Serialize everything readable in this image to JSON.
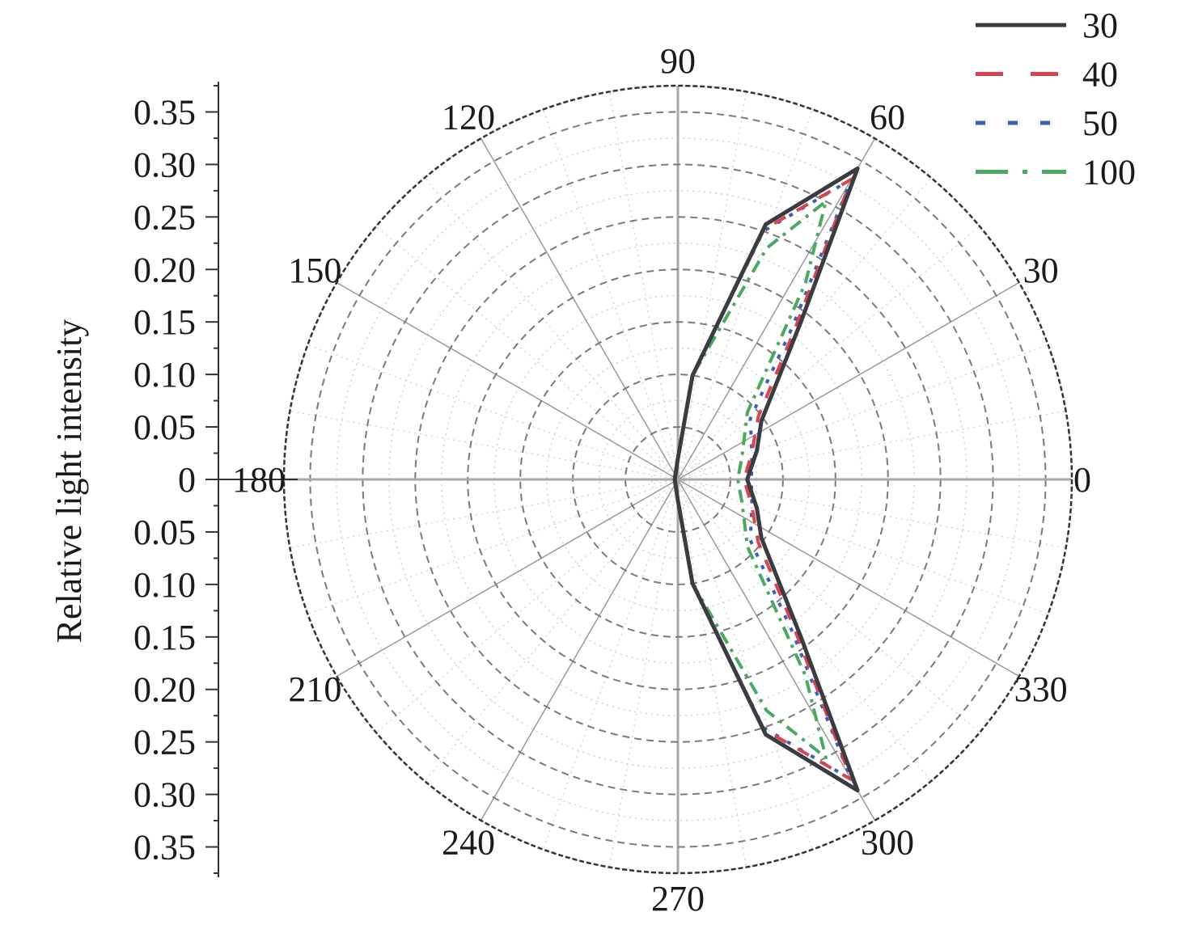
{
  "chart_data": {
    "type": "polar-line",
    "ylabel": "Relative light intensity",
    "rlim": [
      0,
      0.375
    ],
    "r_ticks": [
      0,
      0.05,
      0.1,
      0.15,
      0.2,
      0.25,
      0.3,
      0.35
    ],
    "r_tick_labels": [
      "0",
      "0.05",
      "0.10",
      "0.15",
      "0.20",
      "0.25",
      "0.30",
      "0.35"
    ],
    "angle_ticks": [
      0,
      30,
      60,
      90,
      120,
      150,
      180,
      210,
      240,
      270,
      300,
      330
    ],
    "angle_tick_labels": [
      "0",
      "30",
      "60",
      "90",
      "120",
      "150",
      "180",
      "210",
      "240",
      "270",
      "300",
      "330"
    ],
    "legend_position": "top-right",
    "series": [
      {
        "name": "30",
        "color": "#3b3b42",
        "style": "solid",
        "angles": [
          90,
          82,
          71,
          60,
          52,
          35,
          20,
          0,
          340,
          325,
          308,
          300,
          289,
          278,
          270,
          180
        ],
        "values": [
          0.02,
          0.1,
          0.257,
          0.342,
          0.19,
          0.097,
          0.08,
          0.066,
          0.08,
          0.097,
          0.19,
          0.342,
          0.257,
          0.1,
          0.02,
          0.003
        ]
      },
      {
        "name": "40",
        "color": "#d64550",
        "style": "dashed",
        "angles": [
          90,
          82,
          71,
          60,
          52,
          38,
          20,
          0,
          340,
          322,
          308,
          300,
          289,
          278,
          270,
          180
        ],
        "values": [
          0.02,
          0.1,
          0.252,
          0.33,
          0.18,
          0.097,
          0.075,
          0.063,
          0.075,
          0.097,
          0.18,
          0.33,
          0.252,
          0.1,
          0.02,
          0.003
        ]
      },
      {
        "name": "50",
        "color": "#3a5fb3",
        "style": "dotted",
        "angles": [
          90,
          82,
          71,
          60,
          53,
          40,
          20,
          0,
          340,
          320,
          307,
          300,
          289,
          278,
          270,
          180
        ],
        "values": [
          0.02,
          0.1,
          0.25,
          0.33,
          0.18,
          0.09,
          0.075,
          0.07,
          0.075,
          0.09,
          0.18,
          0.33,
          0.25,
          0.1,
          0.02,
          0.003
        ]
      },
      {
        "name": "100",
        "color": "#4aa860",
        "style": "dash-dot",
        "angles": [
          90,
          82,
          69,
          62,
          57,
          44,
          20,
          0,
          340,
          316,
          303,
          298,
          291,
          278,
          270,
          180
        ],
        "values": [
          0.02,
          0.1,
          0.236,
          0.3,
          0.223,
          0.092,
          0.065,
          0.057,
          0.065,
          0.092,
          0.223,
          0.3,
          0.236,
          0.1,
          0.02,
          0.003
        ]
      }
    ]
  }
}
